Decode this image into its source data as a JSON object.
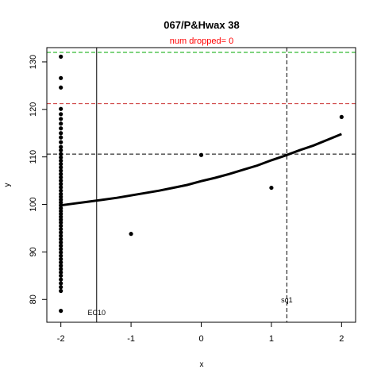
{
  "chart_data": {
    "type": "scatter",
    "title": "067/P&Hwax 38",
    "subtitle": "num dropped= 0",
    "xlabel": "x",
    "ylabel": "y",
    "xlim": [
      -2.2,
      2.2
    ],
    "ylim": [
      75.2,
      133.0
    ],
    "x_ticks": [
      -2,
      -1,
      0,
      1,
      2
    ],
    "x_tick_labels": [
      "-2",
      "-1",
      "0",
      "1",
      "2"
    ],
    "y_ticks": [
      80,
      90,
      100,
      110,
      120,
      130
    ],
    "y_tick_labels": [
      "80",
      "90",
      "100",
      "110",
      "120",
      "130"
    ],
    "points": [
      {
        "x": -2,
        "y": 131.1
      },
      {
        "x": -2,
        "y": 126.6
      },
      {
        "x": -2,
        "y": 124.6
      },
      {
        "x": -2,
        "y": 120.1
      },
      {
        "x": -2,
        "y": 119.0
      },
      {
        "x": -2,
        "y": 118.0
      },
      {
        "x": -2,
        "y": 117.0
      },
      {
        "x": -2,
        "y": 116.0
      },
      {
        "x": -2,
        "y": 115.0
      },
      {
        "x": -2,
        "y": 114.1
      },
      {
        "x": -2,
        "y": 113.1
      },
      {
        "x": -2,
        "y": 112.1
      },
      {
        "x": -2,
        "y": 111.4
      },
      {
        "x": -2,
        "y": 110.6
      },
      {
        "x": -2,
        "y": 109.9
      },
      {
        "x": -2,
        "y": 109.2
      },
      {
        "x": -2,
        "y": 108.5
      },
      {
        "x": -2,
        "y": 107.8
      },
      {
        "x": -2,
        "y": 107.1
      },
      {
        "x": -2,
        "y": 106.4
      },
      {
        "x": -2,
        "y": 105.7
      },
      {
        "x": -2,
        "y": 105.0
      },
      {
        "x": -2,
        "y": 104.3
      },
      {
        "x": -2,
        "y": 103.6
      },
      {
        "x": -2,
        "y": 102.9
      },
      {
        "x": -2,
        "y": 102.2
      },
      {
        "x": -2,
        "y": 101.6
      },
      {
        "x": -2,
        "y": 101.0
      },
      {
        "x": -2,
        "y": 100.4
      },
      {
        "x": -2,
        "y": 99.8
      },
      {
        "x": -2,
        "y": 99.2
      },
      {
        "x": -2,
        "y": 98.6
      },
      {
        "x": -2,
        "y": 98.0
      },
      {
        "x": -2,
        "y": 97.4
      },
      {
        "x": -2,
        "y": 96.8
      },
      {
        "x": -2,
        "y": 96.2
      },
      {
        "x": -2,
        "y": 95.5
      },
      {
        "x": -2,
        "y": 94.8
      },
      {
        "x": -2,
        "y": 94.1
      },
      {
        "x": -2,
        "y": 93.4
      },
      {
        "x": -2,
        "y": 92.7
      },
      {
        "x": -2,
        "y": 92.0
      },
      {
        "x": -2,
        "y": 91.3
      },
      {
        "x": -2,
        "y": 90.6
      },
      {
        "x": -2,
        "y": 89.9
      },
      {
        "x": -2,
        "y": 89.2
      },
      {
        "x": -2,
        "y": 88.5
      },
      {
        "x": -2,
        "y": 87.8
      },
      {
        "x": -2,
        "y": 87.1
      },
      {
        "x": -2,
        "y": 86.4
      },
      {
        "x": -2,
        "y": 85.7
      },
      {
        "x": -2,
        "y": 85.0
      },
      {
        "x": -2,
        "y": 84.2
      },
      {
        "x": -2,
        "y": 83.4
      },
      {
        "x": -2,
        "y": 82.6
      },
      {
        "x": -2,
        "y": 81.8
      },
      {
        "x": -2,
        "y": 77.6
      },
      {
        "x": -1,
        "y": 93.8
      },
      {
        "x": 0,
        "y": 110.4
      },
      {
        "x": 1,
        "y": 103.5
      },
      {
        "x": 2,
        "y": 118.4
      }
    ],
    "fitted_curve": {
      "x": [
        -2.0,
        -1.8,
        -1.6,
        -1.4,
        -1.2,
        -1.0,
        -0.8,
        -0.6,
        -0.4,
        -0.2,
        0.0,
        0.2,
        0.4,
        0.6,
        0.8,
        1.0,
        1.2,
        1.4,
        1.6,
        1.8,
        2.0
      ],
      "y": [
        99.8,
        100.2,
        100.6,
        101.0,
        101.4,
        101.9,
        102.4,
        102.9,
        103.5,
        104.1,
        104.9,
        105.6,
        106.4,
        107.3,
        108.2,
        109.3,
        110.3,
        111.4,
        112.4,
        113.6,
        114.8
      ]
    },
    "reference_lines": {
      "horizontal": [
        {
          "y": 132.0,
          "color": "#00aa00",
          "style": "dashed"
        },
        {
          "y": 121.2,
          "color": "#cc3333",
          "style": "dashed"
        },
        {
          "y": 110.6,
          "color": "#000000",
          "style": "dashed"
        }
      ],
      "vertical": [
        {
          "x": -1.49,
          "color": "#000000",
          "style": "solid",
          "label": "EC10"
        },
        {
          "x": 1.22,
          "color": "#000000",
          "style": "dashed",
          "label": "sq1"
        }
      ]
    },
    "colors": {
      "points": "#000000",
      "curve": "#000000",
      "subtitle": "#ff0000"
    }
  }
}
